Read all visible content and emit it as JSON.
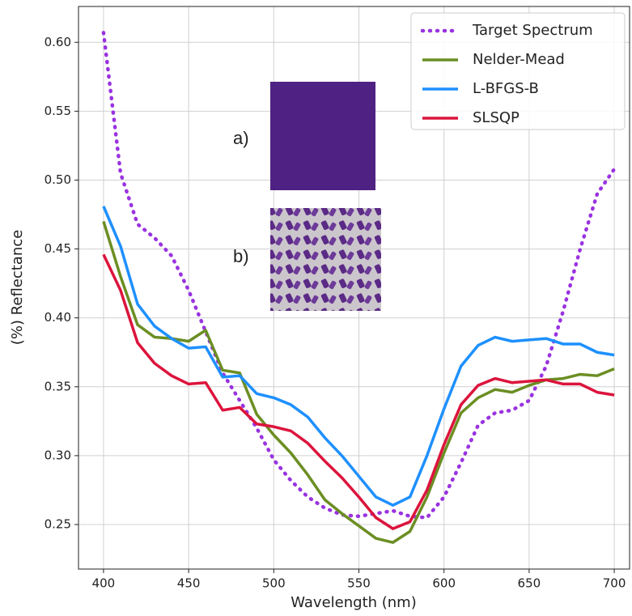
{
  "chart_data": {
    "type": "line",
    "xlabel": "Wavelength (nm)",
    "ylabel": "(%) Reflectance",
    "annotations": [
      "a)",
      "b)"
    ],
    "x": [
      400,
      410,
      420,
      430,
      440,
      450,
      460,
      470,
      480,
      490,
      500,
      510,
      520,
      530,
      540,
      550,
      560,
      570,
      580,
      590,
      600,
      610,
      620,
      630,
      640,
      650,
      660,
      670,
      680,
      690,
      700
    ],
    "series": [
      {
        "name": "Target Spectrum",
        "color": "#9932e0",
        "style": "dotted",
        "values": [
          0.607,
          0.505,
          0.468,
          0.458,
          0.445,
          0.42,
          0.39,
          0.36,
          0.34,
          0.32,
          0.297,
          0.282,
          0.27,
          0.262,
          0.257,
          0.256,
          0.258,
          0.26,
          0.256,
          0.255,
          0.27,
          0.295,
          0.322,
          0.331,
          0.333,
          0.34,
          0.365,
          0.405,
          0.45,
          0.49,
          0.508
        ]
      },
      {
        "name": "Nelder-Mead",
        "color": "#6b8e23",
        "style": "solid",
        "values": [
          0.47,
          0.43,
          0.395,
          0.386,
          0.385,
          0.383,
          0.391,
          0.362,
          0.36,
          0.33,
          0.315,
          0.302,
          0.286,
          0.268,
          0.258,
          0.249,
          0.24,
          0.237,
          0.245,
          0.27,
          0.302,
          0.331,
          0.342,
          0.348,
          0.346,
          0.351,
          0.355,
          0.356,
          0.359,
          0.358,
          0.363
        ]
      },
      {
        "name": "L-BFGS-B",
        "color": "#1e90ff",
        "style": "solid",
        "values": [
          0.481,
          0.452,
          0.41,
          0.394,
          0.385,
          0.378,
          0.379,
          0.357,
          0.358,
          0.345,
          0.342,
          0.337,
          0.328,
          0.313,
          0.3,
          0.285,
          0.27,
          0.264,
          0.27,
          0.3,
          0.334,
          0.365,
          0.38,
          0.386,
          0.383,
          0.384,
          0.385,
          0.381,
          0.381,
          0.375,
          0.373
        ]
      },
      {
        "name": "SLSQP",
        "color": "#dc143c",
        "style": "solid",
        "values": [
          0.446,
          0.42,
          0.382,
          0.367,
          0.358,
          0.352,
          0.353,
          0.333,
          0.335,
          0.323,
          0.321,
          0.318,
          0.309,
          0.296,
          0.284,
          0.27,
          0.255,
          0.247,
          0.252,
          0.275,
          0.308,
          0.337,
          0.351,
          0.356,
          0.353,
          0.354,
          0.355,
          0.352,
          0.352,
          0.346,
          0.344
        ]
      }
    ],
    "xlim": [
      385.3,
      709
    ],
    "ylim": [
      0.2177,
      0.626
    ],
    "xticks": [
      400,
      450,
      500,
      550,
      600,
      650,
      700
    ],
    "yticks": [
      0.25,
      {
        "value": 0.3,
        "label": "0.30"
      },
      0.35,
      {
        "value": 0.4,
        "label": "0.40"
      },
      0.45,
      {
        "value": 0.5,
        "label": "0.50"
      },
      0.55,
      {
        "value": 0.6,
        "label": "0.60"
      }
    ],
    "grid": true,
    "legend": "upper right"
  }
}
